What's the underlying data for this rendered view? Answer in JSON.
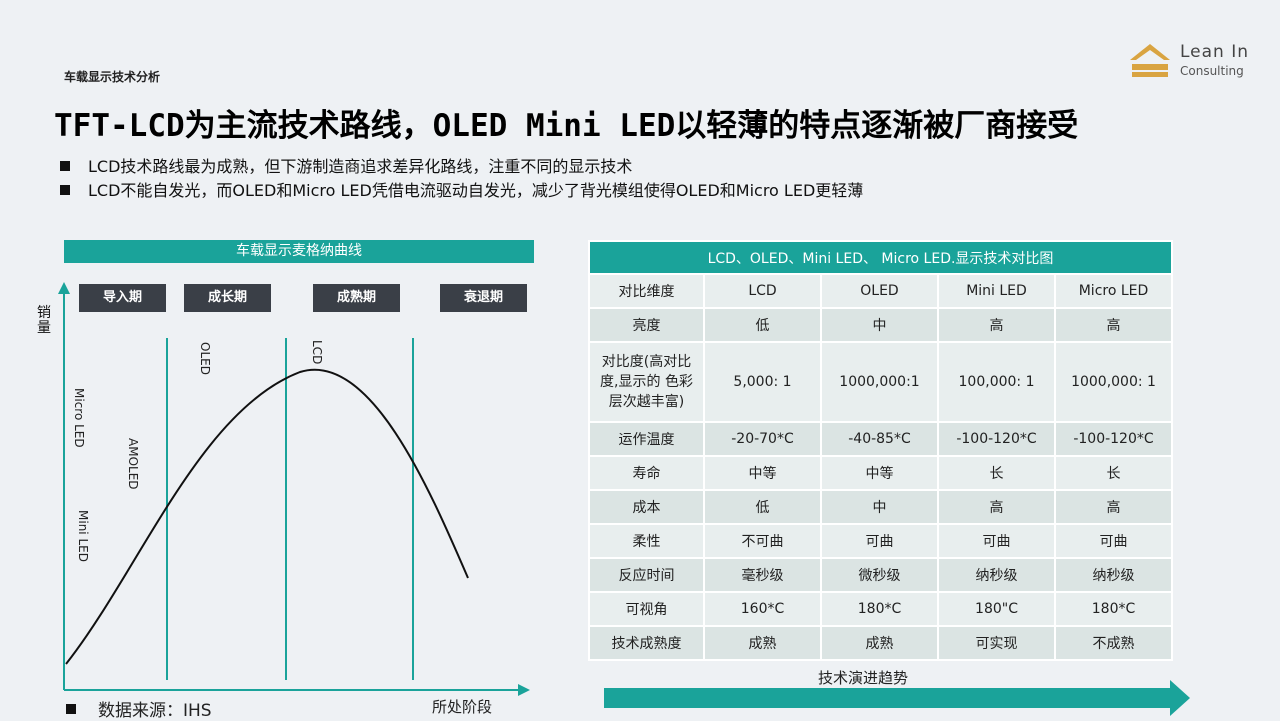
{
  "section_label": "车载显示技术分析",
  "logo": {
    "line1": "Lean In",
    "line2": "Consulting"
  },
  "title": "TFT-LCD为主流技术路线，OLED Mini LED以轻薄的特点逐渐被厂商接受",
  "bullets": [
    "LCD技术路线最为成熟，但下游制造商追求差异化路线，注重不同的显示技术",
    "LCD不能自发光，而OLED和Micro LED凭借电流驱动自发光，减少了背光模组使得OLED和Micro LED更轻薄"
  ],
  "curve": {
    "header": "车载显示麦格纳曲线",
    "y_label": "销量",
    "x_label": "所处阶段",
    "phases": [
      "导入期",
      "成长期",
      "成熟期",
      "衰退期"
    ],
    "tech_labels": [
      "Micro LED",
      "Mini LED",
      "AMOLED",
      "OLED",
      "LCD"
    ]
  },
  "source": "数据来源：IHS",
  "table": {
    "caption": "LCD、OLED、Mini LED、 Micro LED.显示技术对比图",
    "header": [
      "对比维度",
      "LCD",
      "OLED",
      "Mini LED",
      "Micro LED"
    ],
    "rows": [
      [
        "亮度",
        "低",
        "中",
        "高",
        "高"
      ],
      [
        "对比度(高对比度,显示的 色彩层次越丰富)",
        "5,000: 1",
        "1000,000:1",
        "100,000: 1",
        "1000,000: 1"
      ],
      [
        "运作温度",
        "-20-70*C",
        "-40-85*C",
        "-100-120*C",
        "-100-120*C"
      ],
      [
        "寿命",
        "中等",
        "中等",
        "长",
        "长"
      ],
      [
        "成本",
        "低",
        "中",
        "高",
        "高"
      ],
      [
        "柔性",
        "不可曲",
        "可曲",
        "可曲",
        "可曲"
      ],
      [
        "反应时间",
        "毫秒级",
        "微秒级",
        "纳秒级",
        "纳秒级"
      ],
      [
        "可视角",
        "160*C",
        "180*C",
        "180\"C",
        "180*C"
      ],
      [
        "技术成熟度",
        "成熟",
        "成熟",
        "可实现",
        "不成熟"
      ]
    ]
  },
  "trend_label": "技术演进趋势",
  "colors": {
    "accent": "#1aa39a",
    "phase_bg": "#3a3f47",
    "background": "#eef1f4"
  }
}
